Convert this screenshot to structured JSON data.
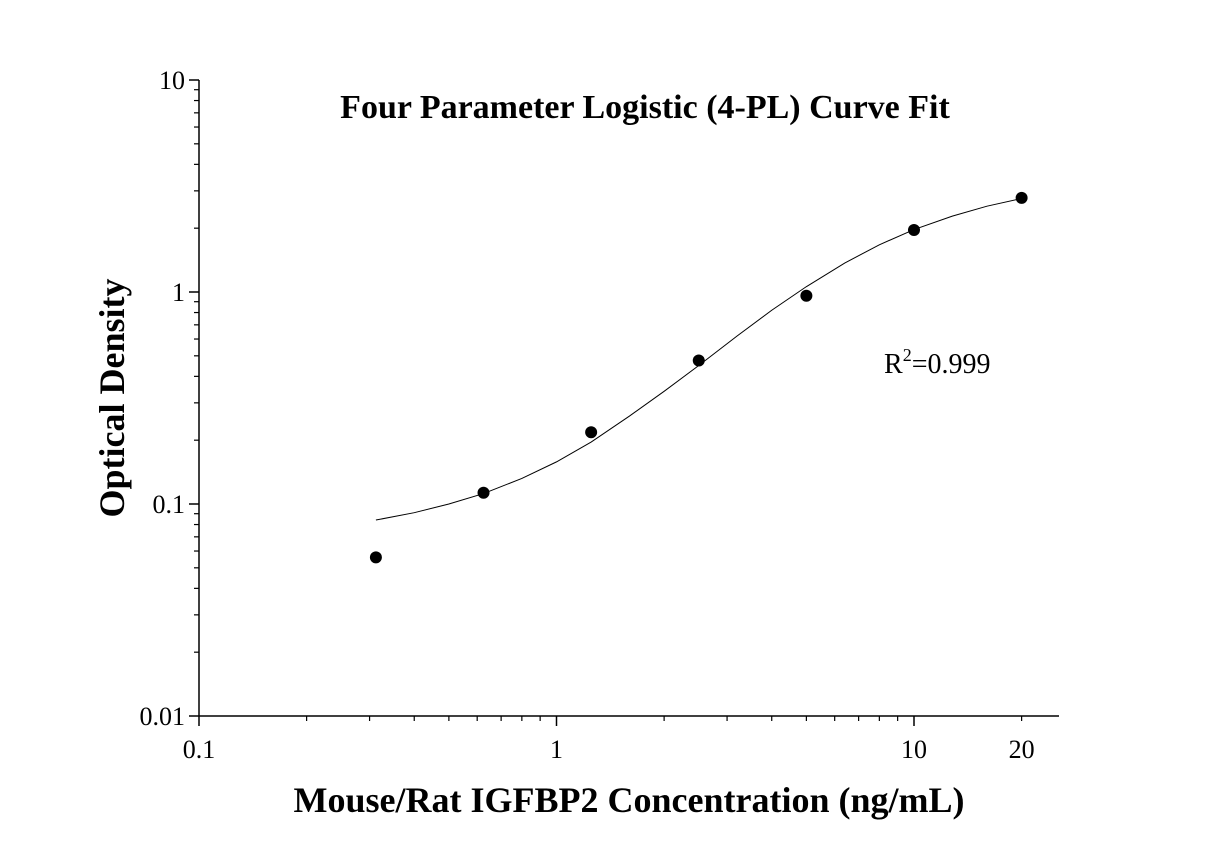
{
  "chart_data": {
    "type": "scatter",
    "title": "Four Parameter Logistic (4-PL) Curve Fit",
    "xlabel": "Mouse/Rat IGFBP2 Concentration (ng/mL)",
    "ylabel": "Optical Density",
    "x_scale": "log",
    "y_scale": "log",
    "xlim": [
      0.1,
      25
    ],
    "ylim": [
      0.01,
      10
    ],
    "x_ticks": [
      0.1,
      1,
      10,
      20
    ],
    "x_tick_labels": [
      "0.1",
      "1",
      "10",
      "20"
    ],
    "y_ticks": [
      0.01,
      0.1,
      1,
      10
    ],
    "y_tick_labels": [
      "0.01",
      "0.1",
      "1",
      "10"
    ],
    "grid": false,
    "series": [
      {
        "type": "scatter",
        "x": [
          0.3125,
          0.625,
          1.25,
          2.5,
          5,
          10,
          20
        ],
        "y": [
          0.056,
          0.113,
          0.218,
          0.475,
          0.96,
          1.96,
          2.78
        ]
      },
      {
        "type": "line",
        "x": [
          0.3125,
          0.4,
          0.5,
          0.625,
          0.8,
          1,
          1.25,
          1.6,
          2,
          2.5,
          3.2,
          4,
          5,
          6.4,
          8,
          10,
          12.8,
          16,
          20
        ],
        "y": [
          0.084,
          0.091,
          0.1,
          0.112,
          0.132,
          0.158,
          0.196,
          0.26,
          0.34,
          0.45,
          0.62,
          0.82,
          1.06,
          1.37,
          1.67,
          1.97,
          2.28,
          2.54,
          2.76
        ]
      }
    ],
    "annotation": {
      "text_main": "R",
      "text_sup": "2",
      "text_rest": "=0.999"
    }
  }
}
